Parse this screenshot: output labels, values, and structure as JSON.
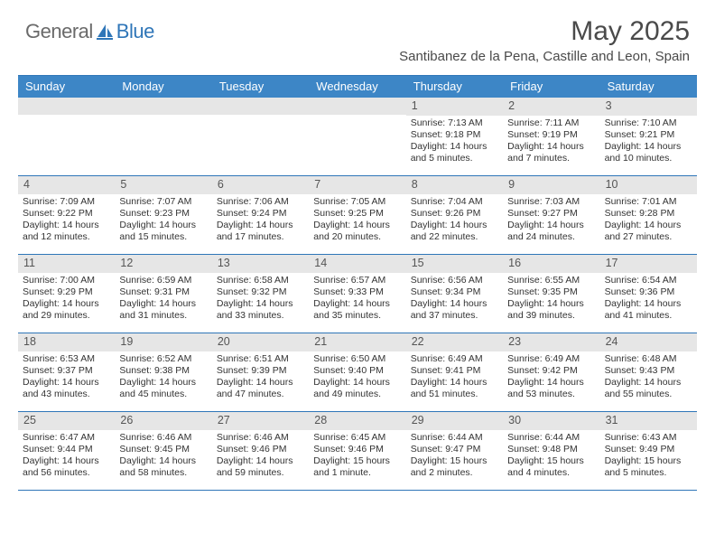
{
  "logo": {
    "word1": "General",
    "word2": "Blue",
    "word2_color": "#2f76b8"
  },
  "title": "May 2025",
  "location": "Santibanez de la Pena, Castille and Leon, Spain",
  "colors": {
    "header_bg": "#3d86c6",
    "header_text": "#ffffff",
    "daynum_bg": "#e6e6e6",
    "border": "#2f76b8",
    "body_text": "#333333",
    "title_text": "#4a4a4a"
  },
  "day_names": [
    "Sunday",
    "Monday",
    "Tuesday",
    "Wednesday",
    "Thursday",
    "Friday",
    "Saturday"
  ],
  "weeks": [
    [
      {
        "n": "",
        "sunrise": "",
        "sunset": "",
        "daylight": ""
      },
      {
        "n": "",
        "sunrise": "",
        "sunset": "",
        "daylight": ""
      },
      {
        "n": "",
        "sunrise": "",
        "sunset": "",
        "daylight": ""
      },
      {
        "n": "",
        "sunrise": "",
        "sunset": "",
        "daylight": ""
      },
      {
        "n": "1",
        "sunrise": "Sunrise: 7:13 AM",
        "sunset": "Sunset: 9:18 PM",
        "daylight": "Daylight: 14 hours and 5 minutes."
      },
      {
        "n": "2",
        "sunrise": "Sunrise: 7:11 AM",
        "sunset": "Sunset: 9:19 PM",
        "daylight": "Daylight: 14 hours and 7 minutes."
      },
      {
        "n": "3",
        "sunrise": "Sunrise: 7:10 AM",
        "sunset": "Sunset: 9:21 PM",
        "daylight": "Daylight: 14 hours and 10 minutes."
      }
    ],
    [
      {
        "n": "4",
        "sunrise": "Sunrise: 7:09 AM",
        "sunset": "Sunset: 9:22 PM",
        "daylight": "Daylight: 14 hours and 12 minutes."
      },
      {
        "n": "5",
        "sunrise": "Sunrise: 7:07 AM",
        "sunset": "Sunset: 9:23 PM",
        "daylight": "Daylight: 14 hours and 15 minutes."
      },
      {
        "n": "6",
        "sunrise": "Sunrise: 7:06 AM",
        "sunset": "Sunset: 9:24 PM",
        "daylight": "Daylight: 14 hours and 17 minutes."
      },
      {
        "n": "7",
        "sunrise": "Sunrise: 7:05 AM",
        "sunset": "Sunset: 9:25 PM",
        "daylight": "Daylight: 14 hours and 20 minutes."
      },
      {
        "n": "8",
        "sunrise": "Sunrise: 7:04 AM",
        "sunset": "Sunset: 9:26 PM",
        "daylight": "Daylight: 14 hours and 22 minutes."
      },
      {
        "n": "9",
        "sunrise": "Sunrise: 7:03 AM",
        "sunset": "Sunset: 9:27 PM",
        "daylight": "Daylight: 14 hours and 24 minutes."
      },
      {
        "n": "10",
        "sunrise": "Sunrise: 7:01 AM",
        "sunset": "Sunset: 9:28 PM",
        "daylight": "Daylight: 14 hours and 27 minutes."
      }
    ],
    [
      {
        "n": "11",
        "sunrise": "Sunrise: 7:00 AM",
        "sunset": "Sunset: 9:29 PM",
        "daylight": "Daylight: 14 hours and 29 minutes."
      },
      {
        "n": "12",
        "sunrise": "Sunrise: 6:59 AM",
        "sunset": "Sunset: 9:31 PM",
        "daylight": "Daylight: 14 hours and 31 minutes."
      },
      {
        "n": "13",
        "sunrise": "Sunrise: 6:58 AM",
        "sunset": "Sunset: 9:32 PM",
        "daylight": "Daylight: 14 hours and 33 minutes."
      },
      {
        "n": "14",
        "sunrise": "Sunrise: 6:57 AM",
        "sunset": "Sunset: 9:33 PM",
        "daylight": "Daylight: 14 hours and 35 minutes."
      },
      {
        "n": "15",
        "sunrise": "Sunrise: 6:56 AM",
        "sunset": "Sunset: 9:34 PM",
        "daylight": "Daylight: 14 hours and 37 minutes."
      },
      {
        "n": "16",
        "sunrise": "Sunrise: 6:55 AM",
        "sunset": "Sunset: 9:35 PM",
        "daylight": "Daylight: 14 hours and 39 minutes."
      },
      {
        "n": "17",
        "sunrise": "Sunrise: 6:54 AM",
        "sunset": "Sunset: 9:36 PM",
        "daylight": "Daylight: 14 hours and 41 minutes."
      }
    ],
    [
      {
        "n": "18",
        "sunrise": "Sunrise: 6:53 AM",
        "sunset": "Sunset: 9:37 PM",
        "daylight": "Daylight: 14 hours and 43 minutes."
      },
      {
        "n": "19",
        "sunrise": "Sunrise: 6:52 AM",
        "sunset": "Sunset: 9:38 PM",
        "daylight": "Daylight: 14 hours and 45 minutes."
      },
      {
        "n": "20",
        "sunrise": "Sunrise: 6:51 AM",
        "sunset": "Sunset: 9:39 PM",
        "daylight": "Daylight: 14 hours and 47 minutes."
      },
      {
        "n": "21",
        "sunrise": "Sunrise: 6:50 AM",
        "sunset": "Sunset: 9:40 PM",
        "daylight": "Daylight: 14 hours and 49 minutes."
      },
      {
        "n": "22",
        "sunrise": "Sunrise: 6:49 AM",
        "sunset": "Sunset: 9:41 PM",
        "daylight": "Daylight: 14 hours and 51 minutes."
      },
      {
        "n": "23",
        "sunrise": "Sunrise: 6:49 AM",
        "sunset": "Sunset: 9:42 PM",
        "daylight": "Daylight: 14 hours and 53 minutes."
      },
      {
        "n": "24",
        "sunrise": "Sunrise: 6:48 AM",
        "sunset": "Sunset: 9:43 PM",
        "daylight": "Daylight: 14 hours and 55 minutes."
      }
    ],
    [
      {
        "n": "25",
        "sunrise": "Sunrise: 6:47 AM",
        "sunset": "Sunset: 9:44 PM",
        "daylight": "Daylight: 14 hours and 56 minutes."
      },
      {
        "n": "26",
        "sunrise": "Sunrise: 6:46 AM",
        "sunset": "Sunset: 9:45 PM",
        "daylight": "Daylight: 14 hours and 58 minutes."
      },
      {
        "n": "27",
        "sunrise": "Sunrise: 6:46 AM",
        "sunset": "Sunset: 9:46 PM",
        "daylight": "Daylight: 14 hours and 59 minutes."
      },
      {
        "n": "28",
        "sunrise": "Sunrise: 6:45 AM",
        "sunset": "Sunset: 9:46 PM",
        "daylight": "Daylight: 15 hours and 1 minute."
      },
      {
        "n": "29",
        "sunrise": "Sunrise: 6:44 AM",
        "sunset": "Sunset: 9:47 PM",
        "daylight": "Daylight: 15 hours and 2 minutes."
      },
      {
        "n": "30",
        "sunrise": "Sunrise: 6:44 AM",
        "sunset": "Sunset: 9:48 PM",
        "daylight": "Daylight: 15 hours and 4 minutes."
      },
      {
        "n": "31",
        "sunrise": "Sunrise: 6:43 AM",
        "sunset": "Sunset: 9:49 PM",
        "daylight": "Daylight: 15 hours and 5 minutes."
      }
    ]
  ]
}
